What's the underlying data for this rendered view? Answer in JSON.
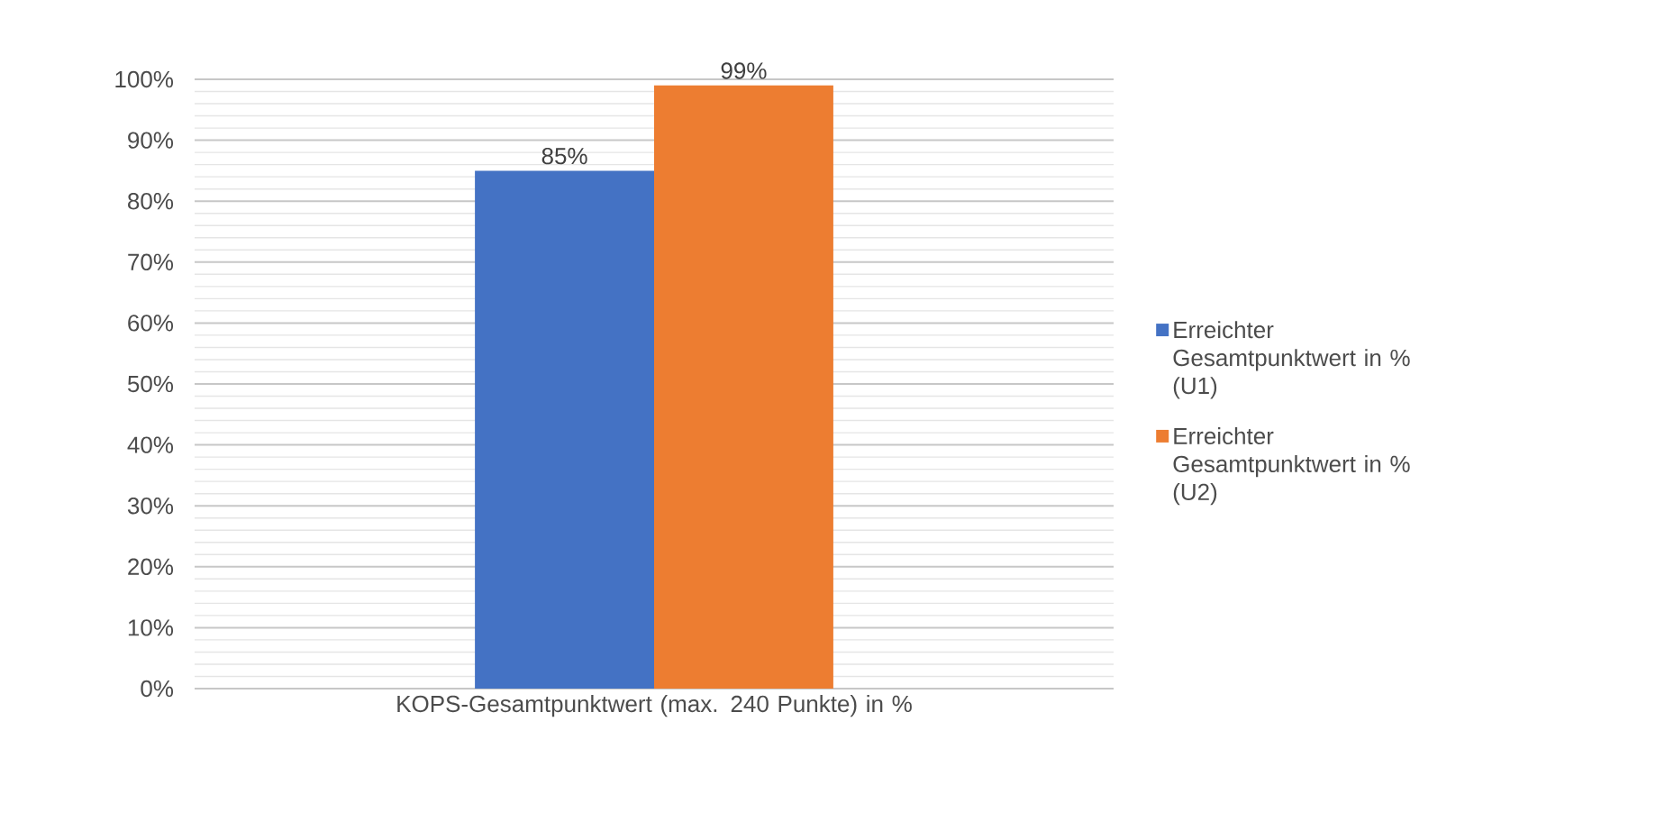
{
  "chart_data": {
    "type": "bar",
    "categories": [
      "KOPS-Gesamtpunktwert (max. 240 Punkte) in %"
    ],
    "series": [
      {
        "name": "Erreichter Gesamtpunktwert in % (U1)",
        "color": "#4472c4",
        "values": [
          85
        ],
        "value_labels": [
          "85%"
        ]
      },
      {
        "name": "Erreichter Gesamtpunktwert in % (U2)",
        "color": "#ed7d31",
        "values": [
          99
        ],
        "value_labels": [
          "99%"
        ]
      }
    ],
    "ylim": [
      0,
      100
    ],
    "yticks": [
      {
        "value": 0,
        "label": "0%"
      },
      {
        "value": 10,
        "label": "10%"
      },
      {
        "value": 20,
        "label": "20%"
      },
      {
        "value": 30,
        "label": "30%"
      },
      {
        "value": 40,
        "label": "40%"
      },
      {
        "value": 50,
        "label": "50%"
      },
      {
        "value": 60,
        "label": "60%"
      },
      {
        "value": 70,
        "label": "70%"
      },
      {
        "value": 80,
        "label": "80%"
      },
      {
        "value": 90,
        "label": "90%"
      },
      {
        "value": 100,
        "label": "100%"
      }
    ],
    "grid": "y",
    "legend": "right"
  }
}
